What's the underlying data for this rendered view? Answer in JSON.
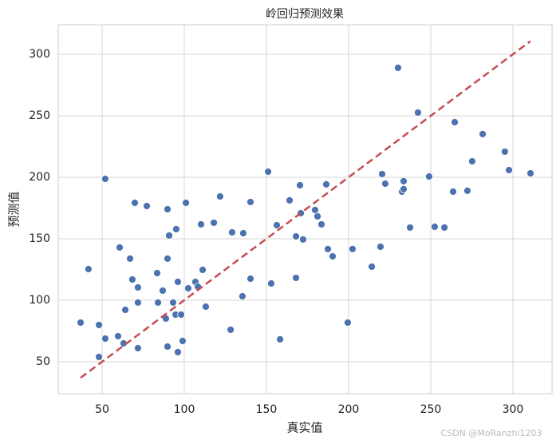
{
  "chart_data": {
    "type": "scatter",
    "title": "岭回归预测效果",
    "x_label": "真实值",
    "y_label": "预测值",
    "xlim": [
      23.3,
      323.8
    ],
    "ylim": [
      24,
      324
    ],
    "xticks": [
      50,
      100,
      150,
      200,
      250,
      300
    ],
    "yticks": [
      50,
      100,
      150,
      200,
      250,
      300
    ],
    "grid": true,
    "series": [
      {
        "kind": "points",
        "color": "#4c72b0",
        "x": [
          36.9,
          41.7,
          48.1,
          48.1,
          51.9,
          51.9,
          59.7,
          60.7,
          63.1,
          64.1,
          67.0,
          68.4,
          69.9,
          71.8,
          71.8,
          71.8,
          77.2,
          83.5,
          84.0,
          86.9,
          88.8,
          89.8,
          89.8,
          89.8,
          90.8,
          93.2,
          94.7,
          95.1,
          96.1,
          96.1,
          98.1,
          99.0,
          101.0,
          102.4,
          106.8,
          108.3,
          110.2,
          111.2,
          113.1,
          118.0,
          121.8,
          128.2,
          129.1,
          135.4,
          135.9,
          140.3,
          140.3,
          151.0,
          152.9,
          156.3,
          158.3,
          164.1,
          168.0,
          168.0,
          170.4,
          170.9,
          172.3,
          179.6,
          181.1,
          183.5,
          186.4,
          187.4,
          190.3,
          199.5,
          202.4,
          214.1,
          219.4,
          220.4,
          222.3,
          230.1,
          232.5,
          233.5,
          233.5,
          237.4,
          242.2,
          249.0,
          252.4,
          258.3,
          263.6,
          264.6,
          272.3,
          275.2,
          281.6,
          295.1,
          297.6,
          310.7
        ],
        "values": [
          81.8,
          125.3,
          79.9,
          53.9,
          198.7,
          68.8,
          70.8,
          142.9,
          64.9,
          92.2,
          133.8,
          116.9,
          179.2,
          110.4,
          98.1,
          61.0,
          176.6,
          122.1,
          98.1,
          107.8,
          85.1,
          174.0,
          133.8,
          62.3,
          152.6,
          98.1,
          88.3,
          157.8,
          114.9,
          57.8,
          88.3,
          66.9,
          179.2,
          109.7,
          114.9,
          111.0,
          161.7,
          124.7,
          94.8,
          163.0,
          184.4,
          76.0,
          155.2,
          103.2,
          154.5,
          179.9,
          117.5,
          204.5,
          113.6,
          161.0,
          68.2,
          181.2,
          151.9,
          118.2,
          193.5,
          170.8,
          149.4,
          173.4,
          168.2,
          161.7,
          194.2,
          141.6,
          135.7,
          81.8,
          141.6,
          127.3,
          143.5,
          202.6,
          194.8,
          289.0,
          188.3,
          196.8,
          190.3,
          159.1,
          252.6,
          200.6,
          159.7,
          159.1,
          188.3,
          244.8,
          189.0,
          213.0,
          235.1,
          220.8,
          205.8,
          203.2
        ]
      },
      {
        "kind": "dashed-line",
        "color": "#c44e52",
        "x": [
          36.9,
          310.7
        ],
        "values": [
          36.9,
          310.7
        ]
      }
    ],
    "watermark": "CSDN @MoRanzhi1203"
  }
}
